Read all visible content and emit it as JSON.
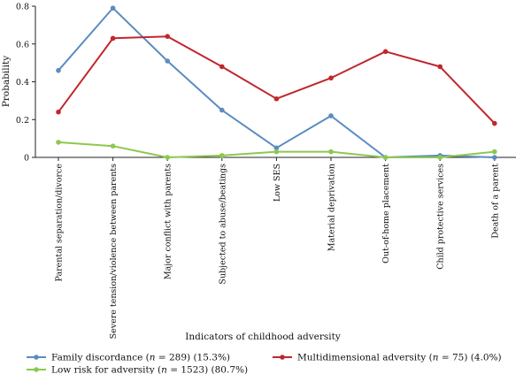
{
  "chart_data": {
    "type": "line",
    "title": "",
    "xlabel": "Indicators of childhood adversity",
    "ylabel": "Probability",
    "ylim": [
      0,
      0.8
    ],
    "yticks": [
      "0",
      "0.2",
      "0.4",
      "0.6",
      "0.8"
    ],
    "grid": false,
    "legend_position": "bottom",
    "categories": [
      "Parental separation/divorce",
      "Severe tension/violence between parents",
      "Major conflict with parents",
      "Subjected to abuse/beatings",
      "Low SES",
      "Material deprivation",
      "Out-of-home placement",
      "Child protective services",
      "Death of a parent"
    ],
    "series": [
      {
        "name_prefix": "Family discordance (",
        "name_n": "n",
        "name_suffix": " = 289) (15.3%)",
        "color": "#5b8cc0",
        "values": [
          0.46,
          0.79,
          0.51,
          0.25,
          0.05,
          0.22,
          0.0,
          0.01,
          0.0
        ]
      },
      {
        "name_prefix": "Multidimensional adversity (",
        "name_n": "n",
        "name_suffix": " = 75) (4.0%)",
        "color": "#c0272d",
        "values": [
          0.24,
          0.63,
          0.64,
          0.48,
          0.31,
          0.42,
          0.56,
          0.48,
          0.18
        ]
      },
      {
        "name_prefix": "Low risk for adversity (",
        "name_n": "n",
        "name_suffix": " = 1523) (80.7%)",
        "color": "#8cc850",
        "values": [
          0.08,
          0.06,
          0.0,
          0.01,
          0.03,
          0.03,
          0.0,
          0.0,
          0.03
        ]
      }
    ]
  }
}
